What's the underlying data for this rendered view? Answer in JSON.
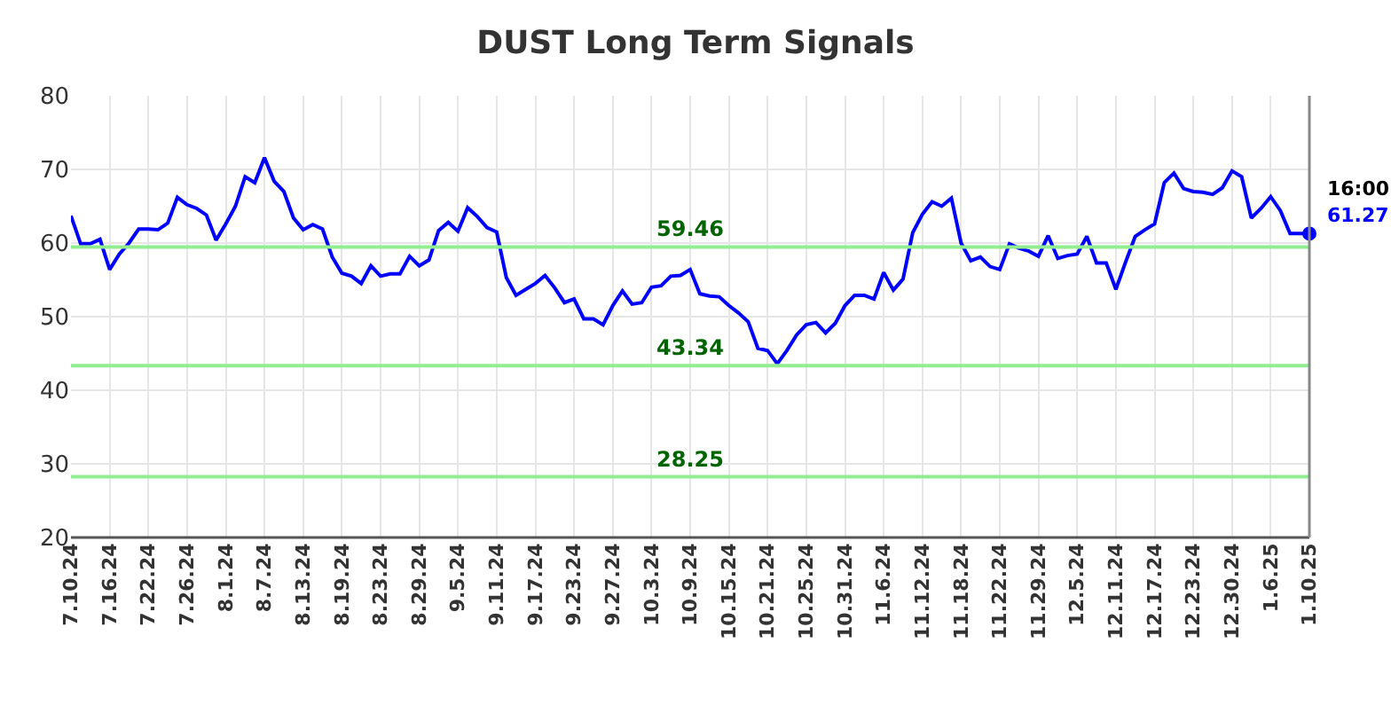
{
  "chart_data": {
    "type": "line",
    "title": "DUST Long Term Signals",
    "categories": [
      "7.10.24",
      null,
      null,
      null,
      "7.16.24",
      null,
      null,
      null,
      "7.22.24",
      null,
      null,
      null,
      "7.26.24",
      null,
      null,
      null,
      "8.1.24",
      null,
      null,
      null,
      "8.7.24",
      null,
      null,
      null,
      "8.13.24",
      null,
      null,
      null,
      "8.19.24",
      null,
      null,
      null,
      "8.23.24",
      null,
      null,
      null,
      "8.29.24",
      null,
      null,
      null,
      "9.5.24",
      null,
      null,
      null,
      "9.11.24",
      null,
      null,
      null,
      "9.17.24",
      null,
      null,
      null,
      "9.23.24",
      null,
      null,
      null,
      "9.27.24",
      null,
      null,
      null,
      "10.3.24",
      null,
      null,
      null,
      "10.9.24",
      null,
      null,
      null,
      "10.15.24",
      null,
      null,
      null,
      "10.21.24",
      null,
      null,
      null,
      "10.25.24",
      null,
      null,
      null,
      "10.31.24",
      null,
      null,
      null,
      "11.6.24",
      null,
      null,
      null,
      "11.12.24",
      null,
      null,
      null,
      "11.18.24",
      null,
      null,
      null,
      "11.22.24",
      null,
      null,
      null,
      "11.29.24",
      null,
      null,
      null,
      "12.5.24",
      null,
      null,
      null,
      "12.11.24",
      null,
      null,
      null,
      "12.17.24",
      null,
      null,
      null,
      "12.23.24",
      null,
      null,
      null,
      "12.30.24",
      null,
      null,
      null,
      "1.6.25",
      null,
      null,
      null,
      "1.10.25"
    ],
    "series": [
      {
        "color": "#0000ff",
        "values": [
          63.7,
          59.9,
          59.9,
          60.5,
          56.4,
          58.5,
          60.0,
          61.9,
          61.9,
          61.8,
          62.7,
          66.2,
          65.2,
          64.7,
          63.8,
          60.4,
          62.6,
          65.0,
          69.0,
          68.2,
          71.6,
          68.4,
          67.0,
          63.4,
          61.8,
          62.5,
          61.9,
          58.1,
          55.9,
          55.5,
          54.5,
          56.9,
          55.5,
          55.8,
          55.8,
          58.2,
          56.9,
          57.7,
          61.7,
          62.8,
          61.6,
          64.8,
          63.6,
          62.1,
          61.5,
          55.3,
          52.9,
          53.7,
          54.5,
          55.6,
          53.9,
          51.9,
          52.4,
          49.7,
          49.7,
          48.9,
          51.5,
          53.5,
          51.7,
          51.9,
          54.0,
          54.2,
          55.5,
          55.6,
          56.4,
          53.1,
          52.8,
          52.7,
          51.5,
          50.5,
          49.3,
          45.7,
          45.4,
          43.6,
          45.4,
          47.5,
          48.9,
          49.2,
          47.8,
          49.1,
          51.5,
          52.9,
          52.9,
          52.4,
          56.0,
          53.6,
          55.1,
          61.4,
          63.9,
          65.6,
          65.0,
          66.1,
          60.0,
          57.6,
          58.1,
          56.8,
          56.4,
          59.9,
          59.3,
          58.9,
          58.2,
          61.0,
          57.9,
          58.3,
          58.5,
          60.9,
          57.3,
          57.3,
          53.7,
          57.4,
          60.9,
          61.8,
          62.6,
          68.2,
          69.5,
          67.4,
          67.0,
          66.9,
          66.6,
          67.5,
          69.8,
          69.0,
          63.4,
          64.7,
          66.3,
          64.4,
          61.3,
          61.3,
          61.27
        ],
        "value_labels": [
          null,
          null,
          null,
          null,
          null,
          null,
          null,
          null,
          null,
          null,
          null,
          null,
          null,
          null,
          null,
          null,
          null,
          null,
          null,
          null,
          null,
          null,
          null,
          null,
          null,
          null,
          null,
          null,
          null,
          null,
          null,
          null,
          null,
          null,
          null,
          null,
          null,
          null,
          null,
          null,
          null,
          null,
          null,
          null,
          null,
          null,
          null,
          null,
          null,
          null,
          null,
          null,
          null,
          null,
          null,
          null,
          null,
          null,
          null,
          null,
          null,
          null,
          null,
          null,
          null,
          null,
          null,
          null,
          null,
          null,
          null,
          null,
          null,
          null,
          null,
          null,
          null,
          null,
          null,
          null,
          null,
          null,
          null,
          null,
          null,
          null,
          null,
          null,
          null,
          null,
          null,
          null,
          null,
          null,
          null,
          null,
          null,
          null,
          null,
          null,
          null,
          null,
          null,
          null,
          null,
          null,
          null,
          null,
          null,
          null,
          null,
          null,
          null,
          null,
          null,
          null,
          null,
          null,
          null,
          null,
          null,
          null,
          null,
          null,
          null,
          null,
          null,
          null,
          "61.27"
        ]
      }
    ],
    "ylim": [
      20,
      80
    ],
    "yticks": [
      20,
      30,
      40,
      50,
      60,
      70,
      80
    ],
    "grid": true,
    "marker": "none",
    "line_style": "solid",
    "ref_lines": [
      {
        "axis": "y",
        "value": 59.46,
        "label": "59.46",
        "color": "#90ee90"
      },
      {
        "axis": "y",
        "value": 43.34,
        "label": "43.34",
        "color": "#90ee90"
      },
      {
        "axis": "y",
        "value": 28.25,
        "label": "28.25",
        "color": "#90ee90"
      }
    ],
    "annotations": [
      {
        "text": "16:00",
        "x": "1.10.25",
        "y": 61.27
      }
    ]
  }
}
